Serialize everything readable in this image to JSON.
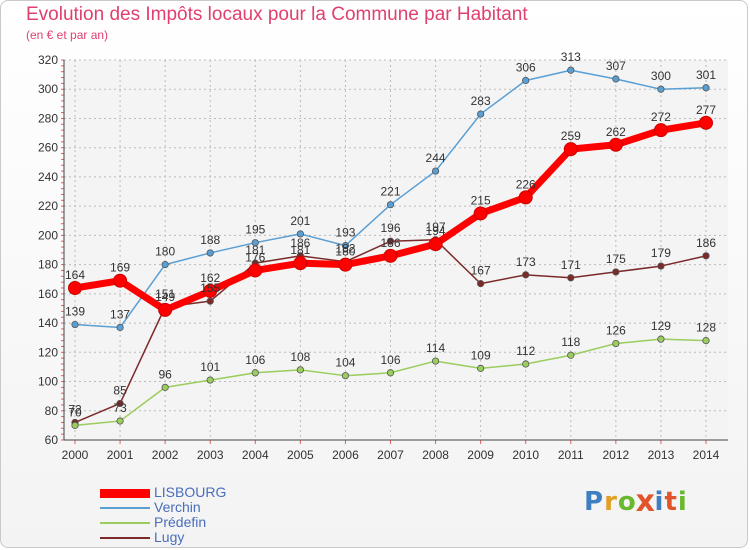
{
  "page": {
    "title": "Evolution des Impôts locaux pour la Commune par Habitant",
    "subtitle": "(en € et par an)"
  },
  "logo": {
    "text": "Proxiti",
    "colors": [
      "#3f7fc1",
      "#e2a022",
      "#6ab82e",
      "#e2542b",
      "#3f7fc1",
      "#e2542b",
      "#6ab82e"
    ]
  },
  "chart_data": {
    "type": "line",
    "title": "Evolution des Impôts locaux pour la Commune par Habitant",
    "subtitle": "(en € et par an)",
    "xlabel": "",
    "ylabel": "",
    "x": [
      2000,
      2001,
      2002,
      2003,
      2004,
      2005,
      2006,
      2007,
      2008,
      2009,
      2010,
      2011,
      2012,
      2013,
      2014
    ],
    "ylim": [
      60,
      320
    ],
    "yticks": [
      60,
      80,
      100,
      120,
      140,
      160,
      180,
      200,
      220,
      240,
      260,
      280,
      300,
      320
    ],
    "grid": true,
    "legend_position": "bottom-left",
    "series": [
      {
        "name": "LISBOURG",
        "color": "#ff0000",
        "values": [
          164,
          169,
          149,
          162,
          176,
          181,
          180,
          186,
          194,
          215,
          226,
          259,
          262,
          272,
          277
        ]
      },
      {
        "name": "Verchin",
        "color": "#5a9fd4",
        "values": [
          139,
          137,
          180,
          188,
          195,
          201,
          193,
          221,
          244,
          283,
          306,
          313,
          307,
          300,
          301
        ]
      },
      {
        "name": "Prédefin",
        "color": "#9acd5e",
        "values": [
          70,
          73,
          96,
          101,
          106,
          108,
          104,
          106,
          114,
          109,
          112,
          118,
          126,
          129,
          128
        ]
      },
      {
        "name": "Lugy",
        "color": "#7b2a2a",
        "values": [
          72,
          85,
          151,
          155,
          181,
          186,
          182,
          196,
          197,
          167,
          173,
          171,
          175,
          179,
          186
        ]
      }
    ]
  }
}
